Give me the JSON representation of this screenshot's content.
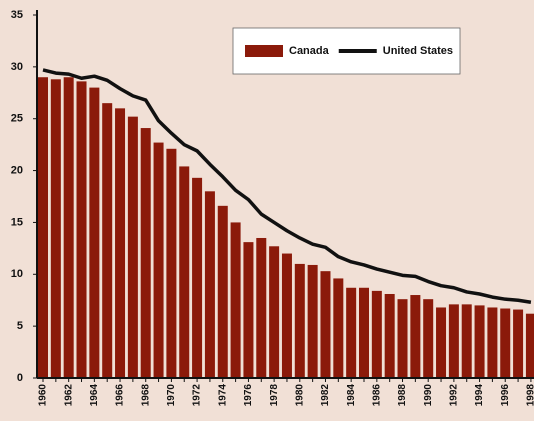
{
  "chart_data": {
    "type": "bar-line",
    "categories": [
      "1960",
      null,
      "1962",
      null,
      "1964",
      null,
      "1966",
      null,
      "1968",
      null,
      "1970",
      null,
      "1972",
      null,
      "1974",
      null,
      "1976",
      null,
      "1978",
      null,
      "1980",
      null,
      "1982",
      null,
      "1984",
      null,
      "1986",
      null,
      "1988",
      null,
      "1990",
      null,
      "1992",
      null,
      "1994",
      null,
      "1996",
      null,
      "1998"
    ],
    "series": [
      {
        "name": "Canada",
        "type": "bar",
        "color": "#8b1a0a",
        "values": [
          29,
          28.8,
          29,
          28.6,
          28,
          26.5,
          26,
          25.2,
          24.1,
          22.7,
          22.1,
          20.4,
          19.3,
          18,
          16.6,
          15,
          13.1,
          13.5,
          12.7,
          12,
          11,
          10.9,
          10.3,
          9.6,
          8.7,
          8.7,
          8.4,
          8.1,
          7.6,
          8,
          7.6,
          6.8,
          7.1,
          7.1,
          7,
          6.8,
          6.7,
          6.6,
          6.2
        ]
      },
      {
        "name": "United States",
        "type": "line",
        "color": "#111111",
        "values": [
          29.7,
          29.4,
          29.3,
          28.9,
          29.1,
          28.7,
          27.9,
          27.2,
          26.8,
          24.8,
          23.6,
          22.5,
          21.9,
          20.6,
          19.4,
          18.1,
          17.2,
          15.8,
          15,
          14.2,
          13.5,
          12.9,
          12.6,
          11.7,
          11.2,
          10.9,
          10.5,
          10.2,
          9.9,
          9.8,
          9.3,
          8.9,
          8.7,
          8.3,
          8.1,
          7.8,
          7.6,
          7.5,
          7.3
        ]
      }
    ],
    "ylim": [
      0,
      35
    ],
    "yticks": [
      0,
      5,
      10,
      15,
      20,
      25,
      30,
      35
    ],
    "legend": "top-right"
  }
}
